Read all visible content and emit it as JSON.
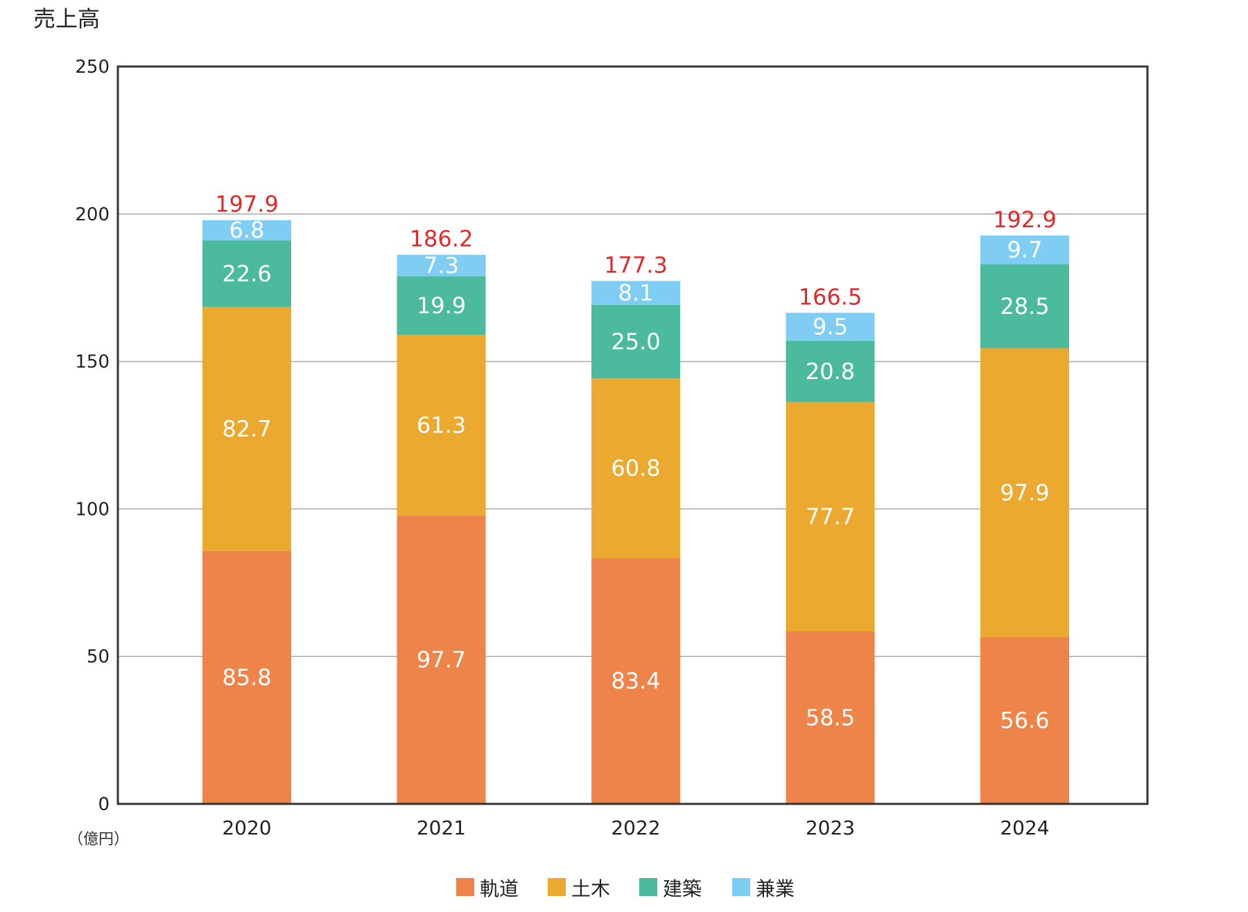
{
  "chart_data": {
    "type": "bar",
    "stacked": true,
    "title": "売上高",
    "unit": "（億円）",
    "categories": [
      "2020",
      "2021",
      "2022",
      "2023",
      "2024"
    ],
    "ylim": [
      0,
      250
    ],
    "yticks": [
      0,
      50,
      100,
      150,
      200,
      250
    ],
    "grid": true,
    "legend_position": "bottom",
    "series": [
      {
        "name": "軌道",
        "color": "#ee844a",
        "values": [
          85.8,
          97.7,
          83.4,
          58.5,
          56.6
        ]
      },
      {
        "name": "土木",
        "color": "#eca930",
        "values": [
          82.7,
          61.3,
          60.8,
          77.7,
          97.9
        ]
      },
      {
        "name": "建築",
        "color": "#4cba9c",
        "values": [
          22.6,
          19.9,
          25.0,
          20.8,
          28.5
        ]
      },
      {
        "name": "兼業",
        "color": "#7fcdf2",
        "values": [
          6.8,
          7.3,
          8.1,
          9.5,
          9.7
        ]
      }
    ],
    "totals": [
      197.9,
      186.2,
      177.3,
      166.5,
      192.9
    ],
    "totals_color": "#e02a2a"
  }
}
